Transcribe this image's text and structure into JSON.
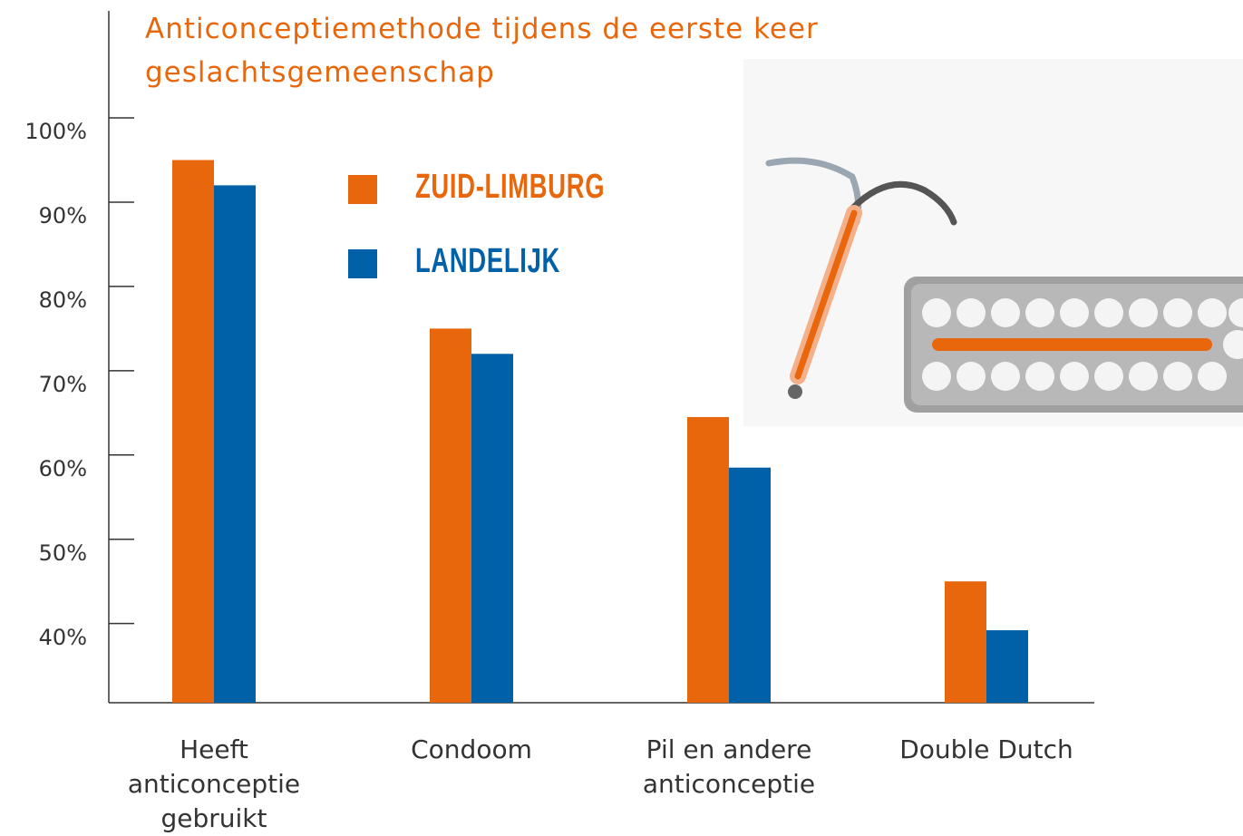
{
  "chart_data": {
    "type": "bar",
    "title": "Anticonceptiemethode tijdens de eerste keer geslachtsgemeenschap",
    "categories": [
      "Heeft anticonceptie gebruikt",
      "Condoom",
      "Pil en andere anticonceptie",
      "Double Dutch"
    ],
    "series": [
      {
        "name": "ZUID-LIMBURG",
        "color": "#e8670c",
        "values": [
          95,
          75,
          64.5,
          45
        ]
      },
      {
        "name": "LANDELIJK",
        "color": "#0060a8",
        "values": [
          92,
          72,
          58.5,
          39.2
        ]
      }
    ],
    "ylim": [
      30.6,
      112.7
    ],
    "yticks": [
      {
        "value": 40,
        "label": "40%"
      },
      {
        "value": 50,
        "label": "50%"
      },
      {
        "value": 60,
        "label": "60%"
      },
      {
        "value": 70,
        "label": "70%"
      },
      {
        "value": 80,
        "label": "80%"
      },
      {
        "value": 90,
        "label": "90%"
      },
      {
        "value": 100,
        "label": "100%"
      }
    ],
    "legend": "upper center"
  }
}
